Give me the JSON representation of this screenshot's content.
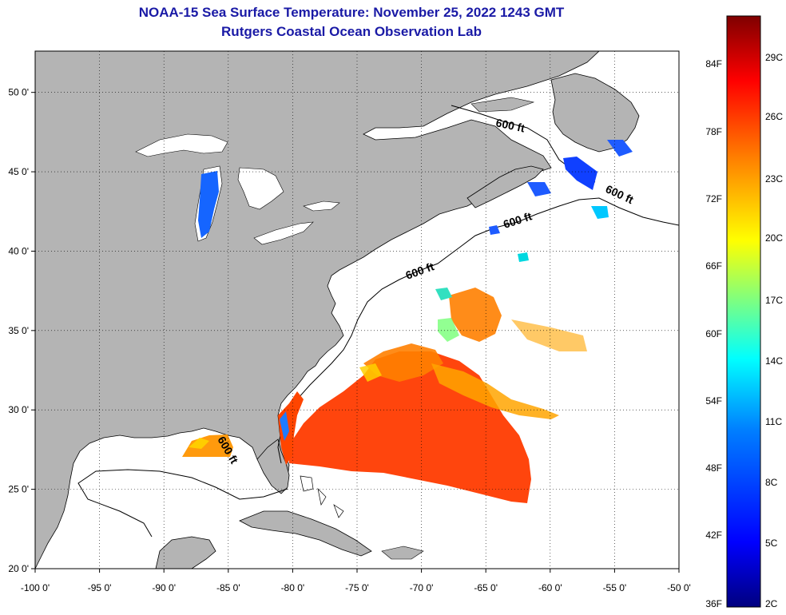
{
  "title_line1": "NOAA-15 Sea Surface Temperature:  November 25, 2022 1243 GMT",
  "title_line2": "Rutgers Coastal Ocean Observation Lab",
  "colors": {
    "land": "#b4b4b4",
    "ocean": "#ffffff",
    "title": "#1a1aa6",
    "colorbar": [
      "#00007f",
      "#0000ff",
      "#007fff",
      "#00ffff",
      "#7fff7f",
      "#ffff00",
      "#ff7f00",
      "#ff0000",
      "#7f0000"
    ]
  },
  "map": {
    "lon_range": [
      -100,
      -50
    ],
    "lat_range": [
      20,
      52.6
    ],
    "lon_ticks": [
      {
        "value": -100,
        "label": "-100 0'"
      },
      {
        "value": -95,
        "label": "-95 0'"
      },
      {
        "value": -90,
        "label": "-90 0'"
      },
      {
        "value": -85,
        "label": "-85 0'"
      },
      {
        "value": -80,
        "label": "-80 0'"
      },
      {
        "value": -75,
        "label": "-75 0'"
      },
      {
        "value": -70,
        "label": "-70 0'"
      },
      {
        "value": -65,
        "label": "-65 0'"
      },
      {
        "value": -60,
        "label": "-60 0'"
      },
      {
        "value": -55,
        "label": "-55 0'"
      },
      {
        "value": -50,
        "label": "-50 0'"
      }
    ],
    "lat_ticks": [
      {
        "value": 20,
        "label": "20 0'"
      },
      {
        "value": 25,
        "label": "25 0'"
      },
      {
        "value": 30,
        "label": "30 0'"
      },
      {
        "value": 35,
        "label": "35 0'"
      },
      {
        "value": 40,
        "label": "40 0'"
      },
      {
        "value": 45,
        "label": "45 0'"
      },
      {
        "value": 50,
        "label": "50 0'"
      }
    ],
    "isobath_labels": [
      "600 ft",
      "600 ft",
      "600 ft",
      "600 ft",
      "600 ft"
    ]
  },
  "colorbar": {
    "fahrenheit": [
      "84F",
      "78F",
      "72F",
      "66F",
      "60F",
      "54F",
      "48F",
      "42F",
      "36F"
    ],
    "celsius": [
      "29C",
      "26C",
      "23C",
      "20C",
      "17C",
      "14C",
      "11C",
      "8C",
      "5C",
      "2C"
    ]
  }
}
